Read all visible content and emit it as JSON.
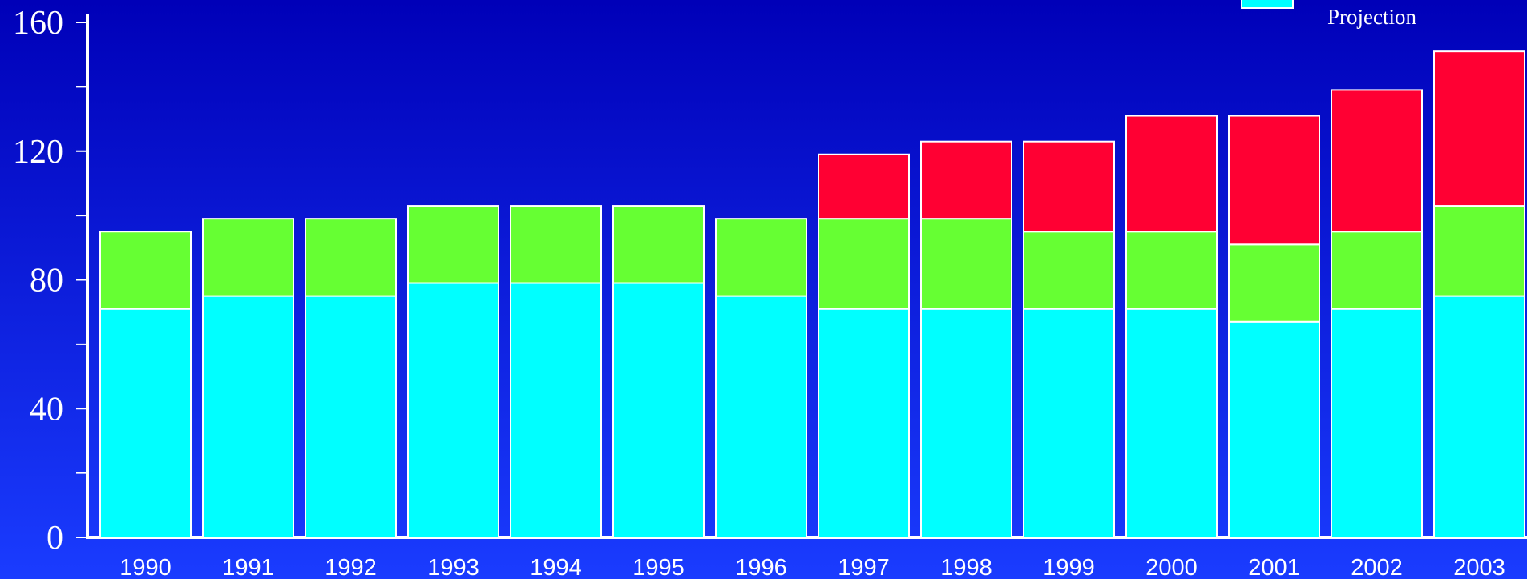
{
  "chart_data": {
    "type": "stacked_bar",
    "categories": [
      "1990",
      "1991",
      "1992",
      "1993",
      "1994",
      "1995",
      "1996",
      "1997",
      "1998",
      "1999",
      "2000",
      "2001",
      "2002",
      "2003"
    ],
    "series": [
      {
        "name": "Projection",
        "color": "#00ffff",
        "values": [
          71,
          75,
          75,
          79,
          79,
          79,
          75,
          71,
          71,
          71,
          71,
          67,
          71,
          75
        ]
      },
      {
        "color": "#66ff33",
        "values": [
          24,
          24,
          24,
          24,
          24,
          24,
          24,
          28,
          28,
          24,
          24,
          24,
          24,
          28
        ]
      },
      {
        "color": "#ff0033",
        "values": [
          0,
          0,
          0,
          0,
          0,
          0,
          0,
          20,
          24,
          28,
          36,
          40,
          44,
          48
        ]
      }
    ],
    "ylim": [
      0,
      160
    ],
    "yticks": [
      0,
      40,
      80,
      120,
      160
    ]
  }
}
